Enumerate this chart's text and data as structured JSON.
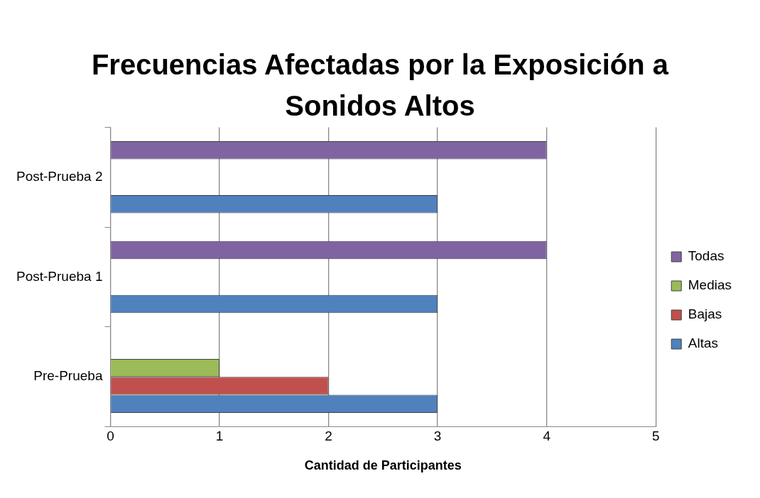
{
  "chart_data": {
    "type": "bar",
    "orientation": "horizontal",
    "title": "Frecuencias Afectadas por la Exposición a Sonidos Altos",
    "xlabel": "Cantidad de Participantes",
    "categories": [
      "Post-Prueba 2",
      "Post-Prueba 1",
      "Pre-Prueba"
    ],
    "series": [
      {
        "name": "Altas",
        "color": "#4f81bd",
        "values": [
          3,
          3,
          3
        ]
      },
      {
        "name": "Bajas",
        "color": "#c0504d",
        "values": [
          null,
          null,
          2
        ]
      },
      {
        "name": "Medias",
        "color": "#9bbb59",
        "values": [
          null,
          null,
          1
        ]
      },
      {
        "name": "Todas",
        "color": "#8064a2",
        "values": [
          4,
          4,
          null
        ]
      }
    ],
    "xlim": [
      0,
      5
    ],
    "xticks": [
      0,
      1,
      2,
      3,
      4,
      5
    ],
    "grid": "x",
    "legend": "right"
  }
}
